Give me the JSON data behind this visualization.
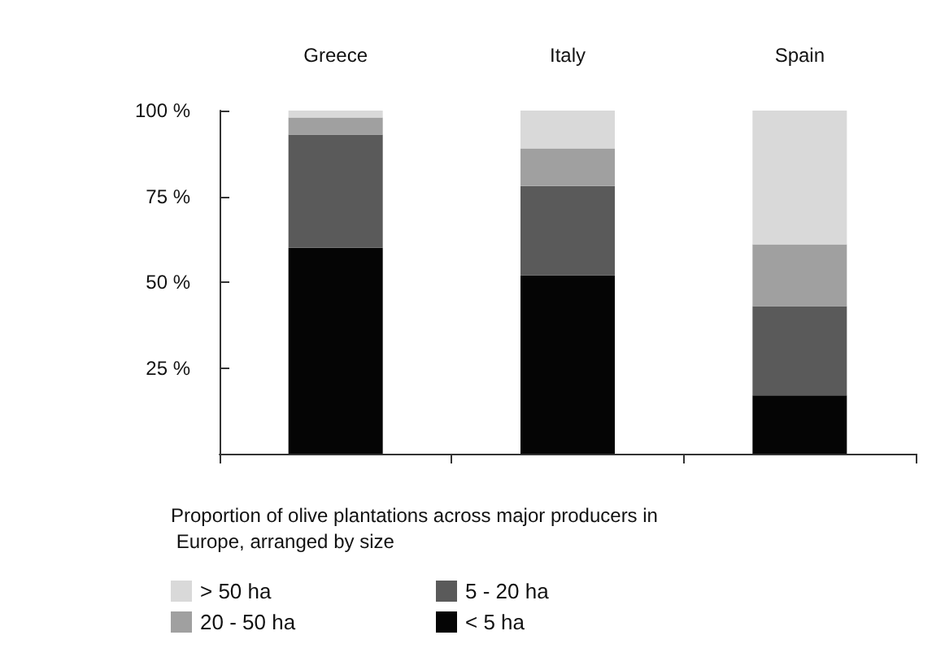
{
  "chart_data": {
    "type": "bar",
    "stacked": true,
    "title": "Proportion of olive plantations across major producers in Europe, arranged by size",
    "categories": [
      "Greece",
      "Italy",
      "Spain"
    ],
    "series": [
      {
        "name": "< 5 ha",
        "color": "#050505",
        "values": [
          60,
          52,
          17
        ]
      },
      {
        "name": "5 - 20 ha",
        "color": "#5a5a5a",
        "values": [
          33,
          26,
          26
        ]
      },
      {
        "name": "20 - 50 ha",
        "color": "#a0a0a0",
        "values": [
          5,
          11,
          18
        ]
      },
      {
        "name": "> 50 ha",
        "color": "#d9d9d9",
        "values": [
          2,
          11,
          39
        ]
      }
    ],
    "ylim": [
      0,
      100
    ],
    "yticks": [
      {
        "value": 25,
        "label": "25 %"
      },
      {
        "value": 50,
        "label": "50 %"
      },
      {
        "value": 75,
        "label": "75 %"
      },
      {
        "value": 100,
        "label": "100 %"
      }
    ],
    "grid": false,
    "legend": "bottom left"
  }
}
